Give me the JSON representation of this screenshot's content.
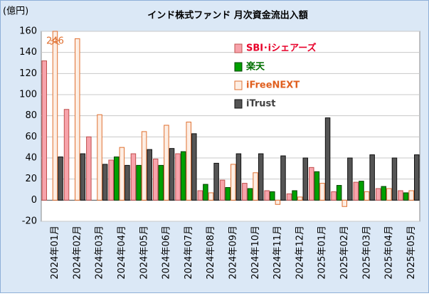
{
  "chart_data": {
    "type": "bar",
    "title": "インド株式ファンド 月次資金流出入額",
    "y_axis_label": "(億円)",
    "categories": [
      "2024年01月",
      "2024年02月",
      "2024年03月",
      "2024年04月",
      "2024年05月",
      "2024年06月",
      "2024年07月",
      "2024年08月",
      "2024年09月",
      "2024年10月",
      "2024年11月",
      "2024年12月",
      "2025年01月",
      "2025年02月",
      "2025年03月",
      "2025年04月",
      "2025年05月"
    ],
    "series": [
      {
        "name": "SBI･iシェアーズ",
        "color": "#f7a3ab",
        "edge": "#c0504d",
        "text_color": "#e8002a",
        "values": [
          132,
          86,
          60,
          38,
          44,
          39,
          44,
          9,
          19,
          16,
          9,
          6,
          31,
          8,
          17,
          11,
          9
        ]
      },
      {
        "name": "楽天",
        "color": "#00a000",
        "edge": "#004000",
        "text_color": "#007000",
        "values": [
          null,
          null,
          null,
          41,
          33,
          33,
          46,
          15,
          12,
          11,
          8,
          9,
          27,
          14,
          18,
          13,
          7
        ]
      },
      {
        "name": "iFreeNEXT",
        "color": "#fdeee4",
        "edge": "#e07030",
        "text_color": "#e06020",
        "values": [
          246,
          153,
          81,
          50,
          65,
          71,
          74,
          7,
          34,
          26,
          -4,
          3,
          16,
          -6,
          8,
          11,
          9
        ],
        "value_labels": [
          "246",
          null,
          null,
          null,
          null,
          null,
          null,
          null,
          null,
          null,
          null,
          null,
          null,
          null,
          null,
          null,
          null
        ]
      },
      {
        "name": "iTrust",
        "color": "#555555",
        "edge": "#111111",
        "text_color": "#404040",
        "values": [
          41,
          44,
          34,
          33,
          48,
          49,
          63,
          35,
          44,
          44,
          42,
          40,
          78,
          40,
          43,
          40,
          43
        ]
      }
    ],
    "ylim": [
      -20,
      160
    ],
    "yticks": [
      -20,
      0,
      20,
      40,
      60,
      80,
      100,
      120,
      140,
      160
    ],
    "grid": true,
    "legend": "upper center"
  }
}
